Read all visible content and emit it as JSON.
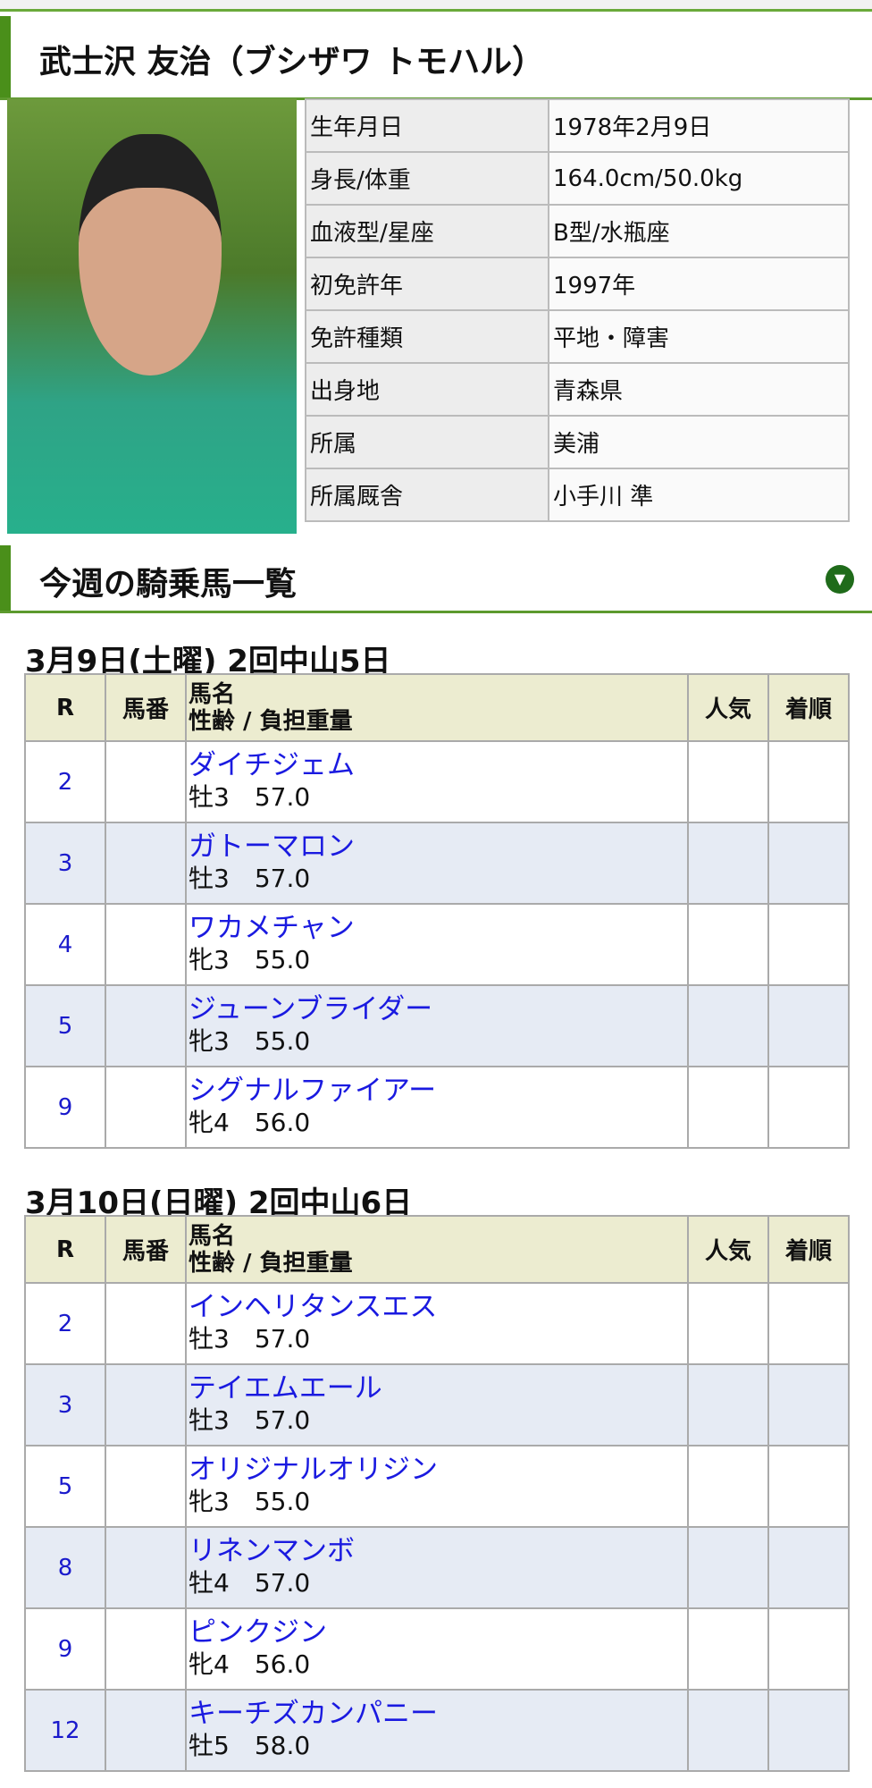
{
  "jockey": {
    "name": "武士沢 友治（ブシザワ トモハル）",
    "profile": [
      {
        "label": "生年月日",
        "value": "1978年2月9日"
      },
      {
        "label": "身長/体重",
        "value": "164.0cm/50.0kg"
      },
      {
        "label": "血液型/星座",
        "value": "B型/水瓶座"
      },
      {
        "label": "初免許年",
        "value": "1997年"
      },
      {
        "label": "免許種類",
        "value": "平地・障害"
      },
      {
        "label": "出身地",
        "value": "青森県"
      },
      {
        "label": "所属",
        "value": "美浦"
      },
      {
        "label": "所属厩舎",
        "value": "小手川 準"
      }
    ]
  },
  "section": {
    "title": "今週の騎乗馬一覧",
    "toggle_icon": "triangle-down-icon"
  },
  "headers": {
    "r": "R",
    "num": "馬番",
    "name": "馬名",
    "sub": "性齢 / 負担重量",
    "pop": "人気",
    "order": "着順"
  },
  "days": [
    {
      "title": "3月9日(土曜) 2回中山5日",
      "rows": [
        {
          "r": "2",
          "name": "ダイチジェム",
          "info": "牡3　57.0"
        },
        {
          "r": "3",
          "name": "ガトーマロン",
          "info": "牡3　57.0"
        },
        {
          "r": "4",
          "name": "ワカメチャン",
          "info": "牝3　55.0"
        },
        {
          "r": "5",
          "name": "ジューンブライダー",
          "info": "牝3　55.0"
        },
        {
          "r": "9",
          "name": "シグナルファイアー",
          "info": "牝4　56.0"
        }
      ]
    },
    {
      "title": "3月10日(日曜) 2回中山6日",
      "rows": [
        {
          "r": "2",
          "name": "インヘリタンスエス",
          "info": "牡3　57.0"
        },
        {
          "r": "3",
          "name": "テイエムエール",
          "info": "牡3　57.0"
        },
        {
          "r": "5",
          "name": "オリジナルオリジン",
          "info": "牝3　55.0"
        },
        {
          "r": "8",
          "name": "リネンマンボ",
          "info": "牡4　57.0"
        },
        {
          "r": "9",
          "name": "ピンクジン",
          "info": "牝4　56.0"
        },
        {
          "r": "12",
          "name": "キーチズカンパニー",
          "info": "牡5　58.0"
        }
      ]
    }
  ]
}
